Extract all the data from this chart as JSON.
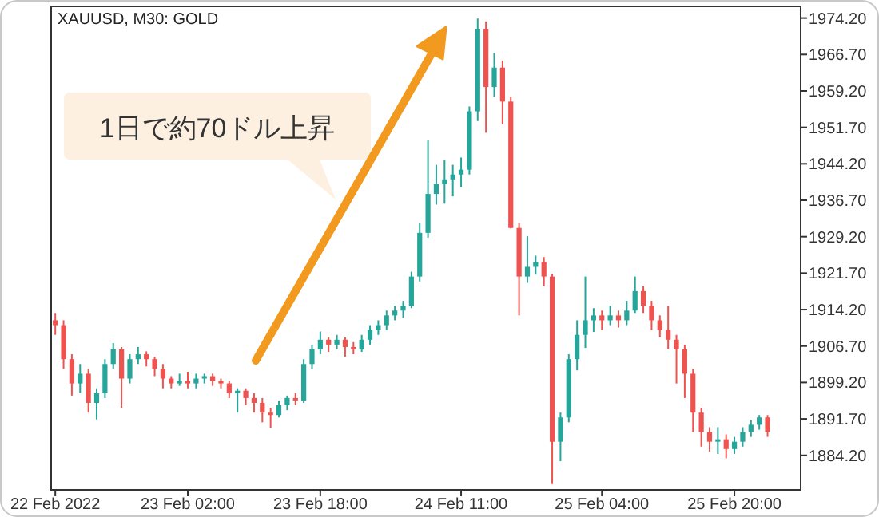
{
  "chart_data": {
    "type": "candlestick",
    "title": "XAUUSD, M30:  GOLD",
    "annotations": [
      "1日で約70ドル上昇"
    ],
    "x": [
      "2022-02-22T10:00",
      "2022-02-22T11:00",
      "2022-02-22T12:00",
      "2022-02-22T13:00",
      "2022-02-22T14:00",
      "2022-02-22T15:00",
      "2022-02-22T16:00",
      "2022-02-22T17:00",
      "2022-02-22T18:00",
      "2022-02-22T19:00",
      "2022-02-22T20:00",
      "2022-02-22T21:00",
      "2022-02-22T22:00",
      "2022-02-22T23:00",
      "2022-02-23T00:00",
      "2022-02-23T01:00",
      "2022-02-23T02:00",
      "2022-02-23T03:00",
      "2022-02-23T04:00",
      "2022-02-23T05:00",
      "2022-02-23T06:00",
      "2022-02-23T07:00",
      "2022-02-23T08:00",
      "2022-02-23T09:00",
      "2022-02-23T10:00",
      "2022-02-23T11:00",
      "2022-02-23T12:00",
      "2022-02-23T13:00",
      "2022-02-23T14:00",
      "2022-02-23T15:00",
      "2022-02-23T16:00",
      "2022-02-23T17:00",
      "2022-02-23T18:00",
      "2022-02-23T19:00",
      "2022-02-23T20:00",
      "2022-02-23T21:00",
      "2022-02-23T22:00",
      "2022-02-23T23:00",
      "2022-02-24T00:00",
      "2022-02-24T01:00",
      "2022-02-24T02:00",
      "2022-02-24T03:00",
      "2022-02-24T04:00",
      "2022-02-24T05:00",
      "2022-02-24T06:00",
      "2022-02-24T07:00",
      "2022-02-24T08:00",
      "2022-02-24T09:00",
      "2022-02-24T10:00",
      "2022-02-24T11:00",
      "2022-02-24T12:00",
      "2022-02-24T13:00",
      "2022-02-24T14:00",
      "2022-02-24T15:00",
      "2022-02-24T16:00",
      "2022-02-24T17:00",
      "2022-02-24T18:00",
      "2022-02-24T19:00",
      "2022-02-24T20:00",
      "2022-02-24T21:00",
      "2022-02-24T22:00",
      "2022-02-24T23:00",
      "2022-02-25T00:00",
      "2022-02-25T01:00",
      "2022-02-25T02:00",
      "2022-02-25T03:00",
      "2022-02-25T04:00",
      "2022-02-25T05:00",
      "2022-02-25T06:00",
      "2022-02-25T07:00",
      "2022-02-25T08:00",
      "2022-02-25T09:00",
      "2022-02-25T10:00",
      "2022-02-25T11:00",
      "2022-02-25T12:00",
      "2022-02-25T13:00",
      "2022-02-25T14:00",
      "2022-02-25T15:00",
      "2022-02-25T16:00",
      "2022-02-25T17:00",
      "2022-02-25T18:00",
      "2022-02-25T19:00",
      "2022-02-25T20:00",
      "2022-02-25T21:00",
      "2022-02-25T22:00",
      "2022-02-25T23:00",
      "2022-02-26T00:00"
    ],
    "ohlc": [
      [
        1912,
        1913.5,
        1909,
        1911
      ],
      [
        1911,
        1912,
        1902,
        1904
      ],
      [
        1904,
        1905,
        1896.5,
        1899
      ],
      [
        1899,
        1903,
        1897,
        1901
      ],
      [
        1901,
        1902,
        1893,
        1895
      ],
      [
        1895,
        1898,
        1891.6,
        1897
      ],
      [
        1897,
        1904,
        1896,
        1903
      ],
      [
        1903,
        1907.3,
        1902,
        1906
      ],
      [
        1906,
        1906.5,
        1894,
        1900
      ],
      [
        1900,
        1905,
        1899,
        1904
      ],
      [
        1904,
        1906.5,
        1903,
        1905
      ],
      [
        1905,
        1905.6,
        1902.5,
        1904
      ],
      [
        1904,
        1904.5,
        1900.5,
        1902
      ],
      [
        1902,
        1903,
        1898,
        1900
      ],
      [
        1900,
        1900.5,
        1898,
        1899
      ],
      [
        1899,
        1901,
        1898.5,
        1899.5
      ],
      [
        1899.5,
        1901.4,
        1898,
        1899
      ],
      [
        1899,
        1901,
        1898,
        1900
      ],
      [
        1900,
        1901,
        1899,
        1900.5
      ],
      [
        1900.5,
        1901,
        1898.5,
        1899.5
      ],
      [
        1899.5,
        1900,
        1898,
        1899
      ],
      [
        1899,
        1899.5,
        1896,
        1897
      ],
      [
        1897,
        1898,
        1893,
        1897.5
      ],
      [
        1897.5,
        1898,
        1894.5,
        1896
      ],
      [
        1896,
        1897,
        1893,
        1895
      ],
      [
        1895,
        1896,
        1891,
        1893
      ],
      [
        1893,
        1894,
        1889.9,
        1892.5
      ],
      [
        1892.5,
        1895.5,
        1892,
        1894.5
      ],
      [
        1894.5,
        1896.5,
        1893.5,
        1896
      ],
      [
        1896,
        1897,
        1894.5,
        1895.5
      ],
      [
        1895.5,
        1904,
        1895,
        1903
      ],
      [
        1903,
        1907,
        1902,
        1906
      ],
      [
        1906,
        1909.7,
        1905,
        1908
      ],
      [
        1908,
        1908.5,
        1905.5,
        1907
      ],
      [
        1907,
        1909,
        1906,
        1908
      ],
      [
        1908,
        1908.5,
        1904.5,
        1906.5
      ],
      [
        1906.5,
        1907.5,
        1905,
        1906
      ],
      [
        1906,
        1909,
        1905.5,
        1908
      ],
      [
        1908,
        1911,
        1907,
        1910
      ],
      [
        1910,
        1912,
        1909,
        1911
      ],
      [
        1911,
        1914,
        1910,
        1913
      ],
      [
        1913,
        1915,
        1912,
        1914
      ],
      [
        1914,
        1916,
        1912.5,
        1915
      ],
      [
        1915,
        1922,
        1914.5,
        1921
      ],
      [
        1921,
        1932,
        1920,
        1930
      ],
      [
        1930,
        1949,
        1929,
        1938
      ],
      [
        1938,
        1944,
        1935.8,
        1940
      ],
      [
        1940,
        1945,
        1936,
        1941
      ],
      [
        1941,
        1944,
        1937.5,
        1942
      ],
      [
        1942,
        1945.5,
        1939.4,
        1943
      ],
      [
        1943,
        1956,
        1942,
        1955
      ],
      [
        1955,
        1974.1,
        1953,
        1972
      ],
      [
        1972,
        1973.5,
        1950.6,
        1960
      ],
      [
        1960,
        1967,
        1958,
        1964
      ],
      [
        1964,
        1965.4,
        1952.3,
        1957
      ],
      [
        1957,
        1958,
        1930.9,
        1931
      ],
      [
        1931,
        1932,
        1913,
        1921
      ],
      [
        1921,
        1929.3,
        1919.7,
        1923
      ],
      [
        1923,
        1925.3,
        1921.4,
        1924
      ],
      [
        1924,
        1925,
        1919,
        1921
      ],
      [
        1921,
        1921.5,
        1878.3,
        1887
      ],
      [
        1887,
        1893,
        1883,
        1892
      ],
      [
        1892,
        1905,
        1891,
        1904
      ],
      [
        1904,
        1912,
        1901.7,
        1909
      ],
      [
        1909,
        1921,
        1906.3,
        1912
      ],
      [
        1912,
        1914.5,
        1909.6,
        1913
      ],
      [
        1913,
        1914,
        1910,
        1912
      ],
      [
        1912,
        1915,
        1911,
        1913
      ],
      [
        1913,
        1914,
        1910.5,
        1912
      ],
      [
        1912,
        1916,
        1911,
        1914
      ],
      [
        1914,
        1921,
        1913.5,
        1918
      ],
      [
        1918,
        1919,
        1913.5,
        1915
      ],
      [
        1915,
        1916,
        1910,
        1912
      ],
      [
        1912,
        1913,
        1908.5,
        1910
      ],
      [
        1910,
        1915,
        1906,
        1908
      ],
      [
        1908,
        1909,
        1899,
        1906
      ],
      [
        1906,
        1907,
        1896,
        1901
      ],
      [
        1901,
        1902,
        1889,
        1893
      ],
      [
        1893,
        1894,
        1886,
        1889
      ],
      [
        1889,
        1890,
        1885,
        1887
      ],
      [
        1887,
        1890,
        1884.5,
        1887.5
      ],
      [
        1887.5,
        1888.5,
        1883.6,
        1885.5
      ],
      [
        1885.5,
        1888,
        1884.5,
        1887
      ],
      [
        1887,
        1890,
        1886,
        1889
      ],
      [
        1889,
        1891.5,
        1888,
        1890.5
      ],
      [
        1890.5,
        1892.5,
        1889.5,
        1892
      ],
      [
        1892,
        1892.5,
        1888,
        1889
      ]
    ],
    "colors": [
      "#ef5350",
      "#ef5350",
      "#ef5350",
      "#26a69a",
      "#ef5350",
      "#26a69a",
      "#26a69a",
      "#26a69a",
      "#ef5350",
      "#26a69a",
      "#26a69a",
      "#ef5350",
      "#ef5350",
      "#ef5350",
      "#ef5350",
      "#26a69a",
      "#ef5350",
      "#26a69a",
      "#26a69a",
      "#ef5350",
      "#ef5350",
      "#ef5350",
      "#26a69a",
      "#ef5350",
      "#ef5350",
      "#ef5350",
      "#ef5350",
      "#26a69a",
      "#26a69a",
      "#ef5350",
      "#26a69a",
      "#26a69a",
      "#26a69a",
      "#ef5350",
      "#26a69a",
      "#ef5350",
      "#ef5350",
      "#26a69a",
      "#26a69a",
      "#26a69a",
      "#26a69a",
      "#26a69a",
      "#26a69a",
      "#26a69a",
      "#26a69a",
      "#26a69a",
      "#26a69a",
      "#26a69a",
      "#26a69a",
      "#26a69a",
      "#26a69a",
      "#26a69a",
      "#ef5350",
      "#26a69a",
      "#ef5350",
      "#ef5350",
      "#ef5350",
      "#26a69a",
      "#26a69a",
      "#ef5350",
      "#ef5350",
      "#26a69a",
      "#26a69a",
      "#26a69a",
      "#26a69a",
      "#26a69a",
      "#ef5350",
      "#26a69a",
      "#ef5350",
      "#26a69a",
      "#26a69a",
      "#ef5350",
      "#ef5350",
      "#ef5350",
      "#ef5350",
      "#ef5350",
      "#ef5350",
      "#ef5350",
      "#ef5350",
      "#ef5350",
      "#26a69a",
      "#ef5350",
      "#26a69a",
      "#26a69a",
      "#26a69a",
      "#26a69a",
      "#ef5350"
    ],
    "xlim": [
      "2022-02-22T09:30",
      "2022-02-26T04:00"
    ],
    "xticks": [
      {
        "value": "2022-02-22T10:00",
        "label": "22 Feb 2022"
      },
      {
        "value": "2022-02-23T02:00",
        "label": "23 Feb 02:00"
      },
      {
        "value": "2022-02-23T18:00",
        "label": "23 Feb 18:00"
      },
      {
        "value": "2022-02-24T11:00",
        "label": "24 Feb 11:00"
      },
      {
        "value": "2022-02-25T04:00",
        "label": "25 Feb 04:00"
      },
      {
        "value": "2022-02-25T20:00",
        "label": "25 Feb 20:00"
      }
    ],
    "ylim": [
      1877.1,
      1976.6
    ],
    "yticks": [
      {
        "value": 1884.2,
        "label": "1884.20"
      },
      {
        "value": 1891.7,
        "label": "1891.70"
      },
      {
        "value": 1899.2,
        "label": "1899.20"
      },
      {
        "value": 1906.7,
        "label": "1906.70"
      },
      {
        "value": 1914.2,
        "label": "1914.20"
      },
      {
        "value": 1921.7,
        "label": "1921.70"
      },
      {
        "value": 1929.2,
        "label": "1929.20"
      },
      {
        "value": 1936.7,
        "label": "1936.70"
      },
      {
        "value": 1944.2,
        "label": "1944.20"
      },
      {
        "value": 1951.7,
        "label": "1951.70"
      },
      {
        "value": 1959.2,
        "label": "1959.20"
      },
      {
        "value": 1966.7,
        "label": "1966.70"
      },
      {
        "value": 1974.2,
        "label": "1974.20"
      }
    ]
  }
}
